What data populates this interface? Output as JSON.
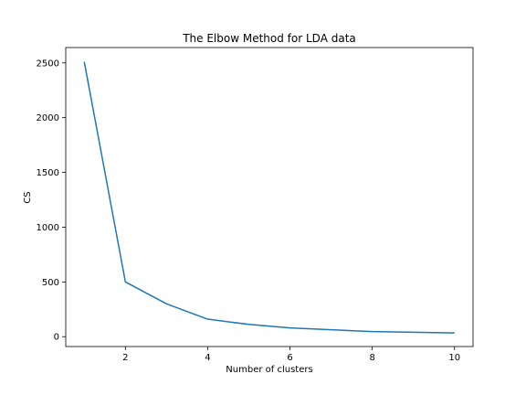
{
  "chart_data": {
    "type": "line",
    "title": "The Elbow Method for LDA data",
    "xlabel": "Number of clusters",
    "ylabel": "CS",
    "xlim": [
      0.55,
      10.45
    ],
    "ylim": [
      -90,
      2640
    ],
    "x_ticks": [
      2,
      4,
      6,
      8,
      10
    ],
    "y_ticks": [
      0,
      500,
      1000,
      1500,
      2000,
      2500
    ],
    "grid": false,
    "legend": "none",
    "series": [
      {
        "color": "#1f77b4",
        "x": [
          1,
          2,
          3,
          4,
          5,
          6,
          7,
          8,
          9,
          10
        ],
        "values": [
          2510,
          500,
          300,
          160,
          112,
          80,
          63,
          47,
          40,
          34
        ]
      }
    ]
  }
}
